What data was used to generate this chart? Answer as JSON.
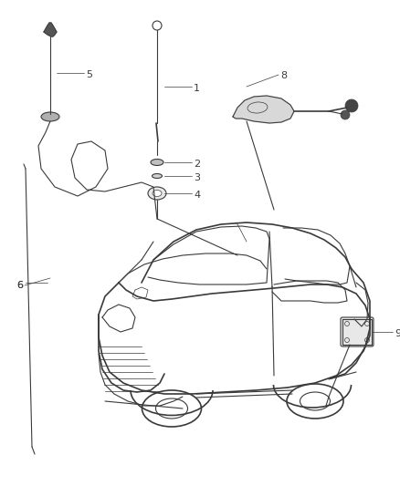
{
  "background_color": "#ffffff",
  "line_color": "#3a3a3a",
  "label_color": "#3a3a3a",
  "fig_width": 4.38,
  "fig_height": 5.33,
  "dpi": 100,
  "xlim": [
    0,
    438
  ],
  "ylim": [
    0,
    533
  ]
}
